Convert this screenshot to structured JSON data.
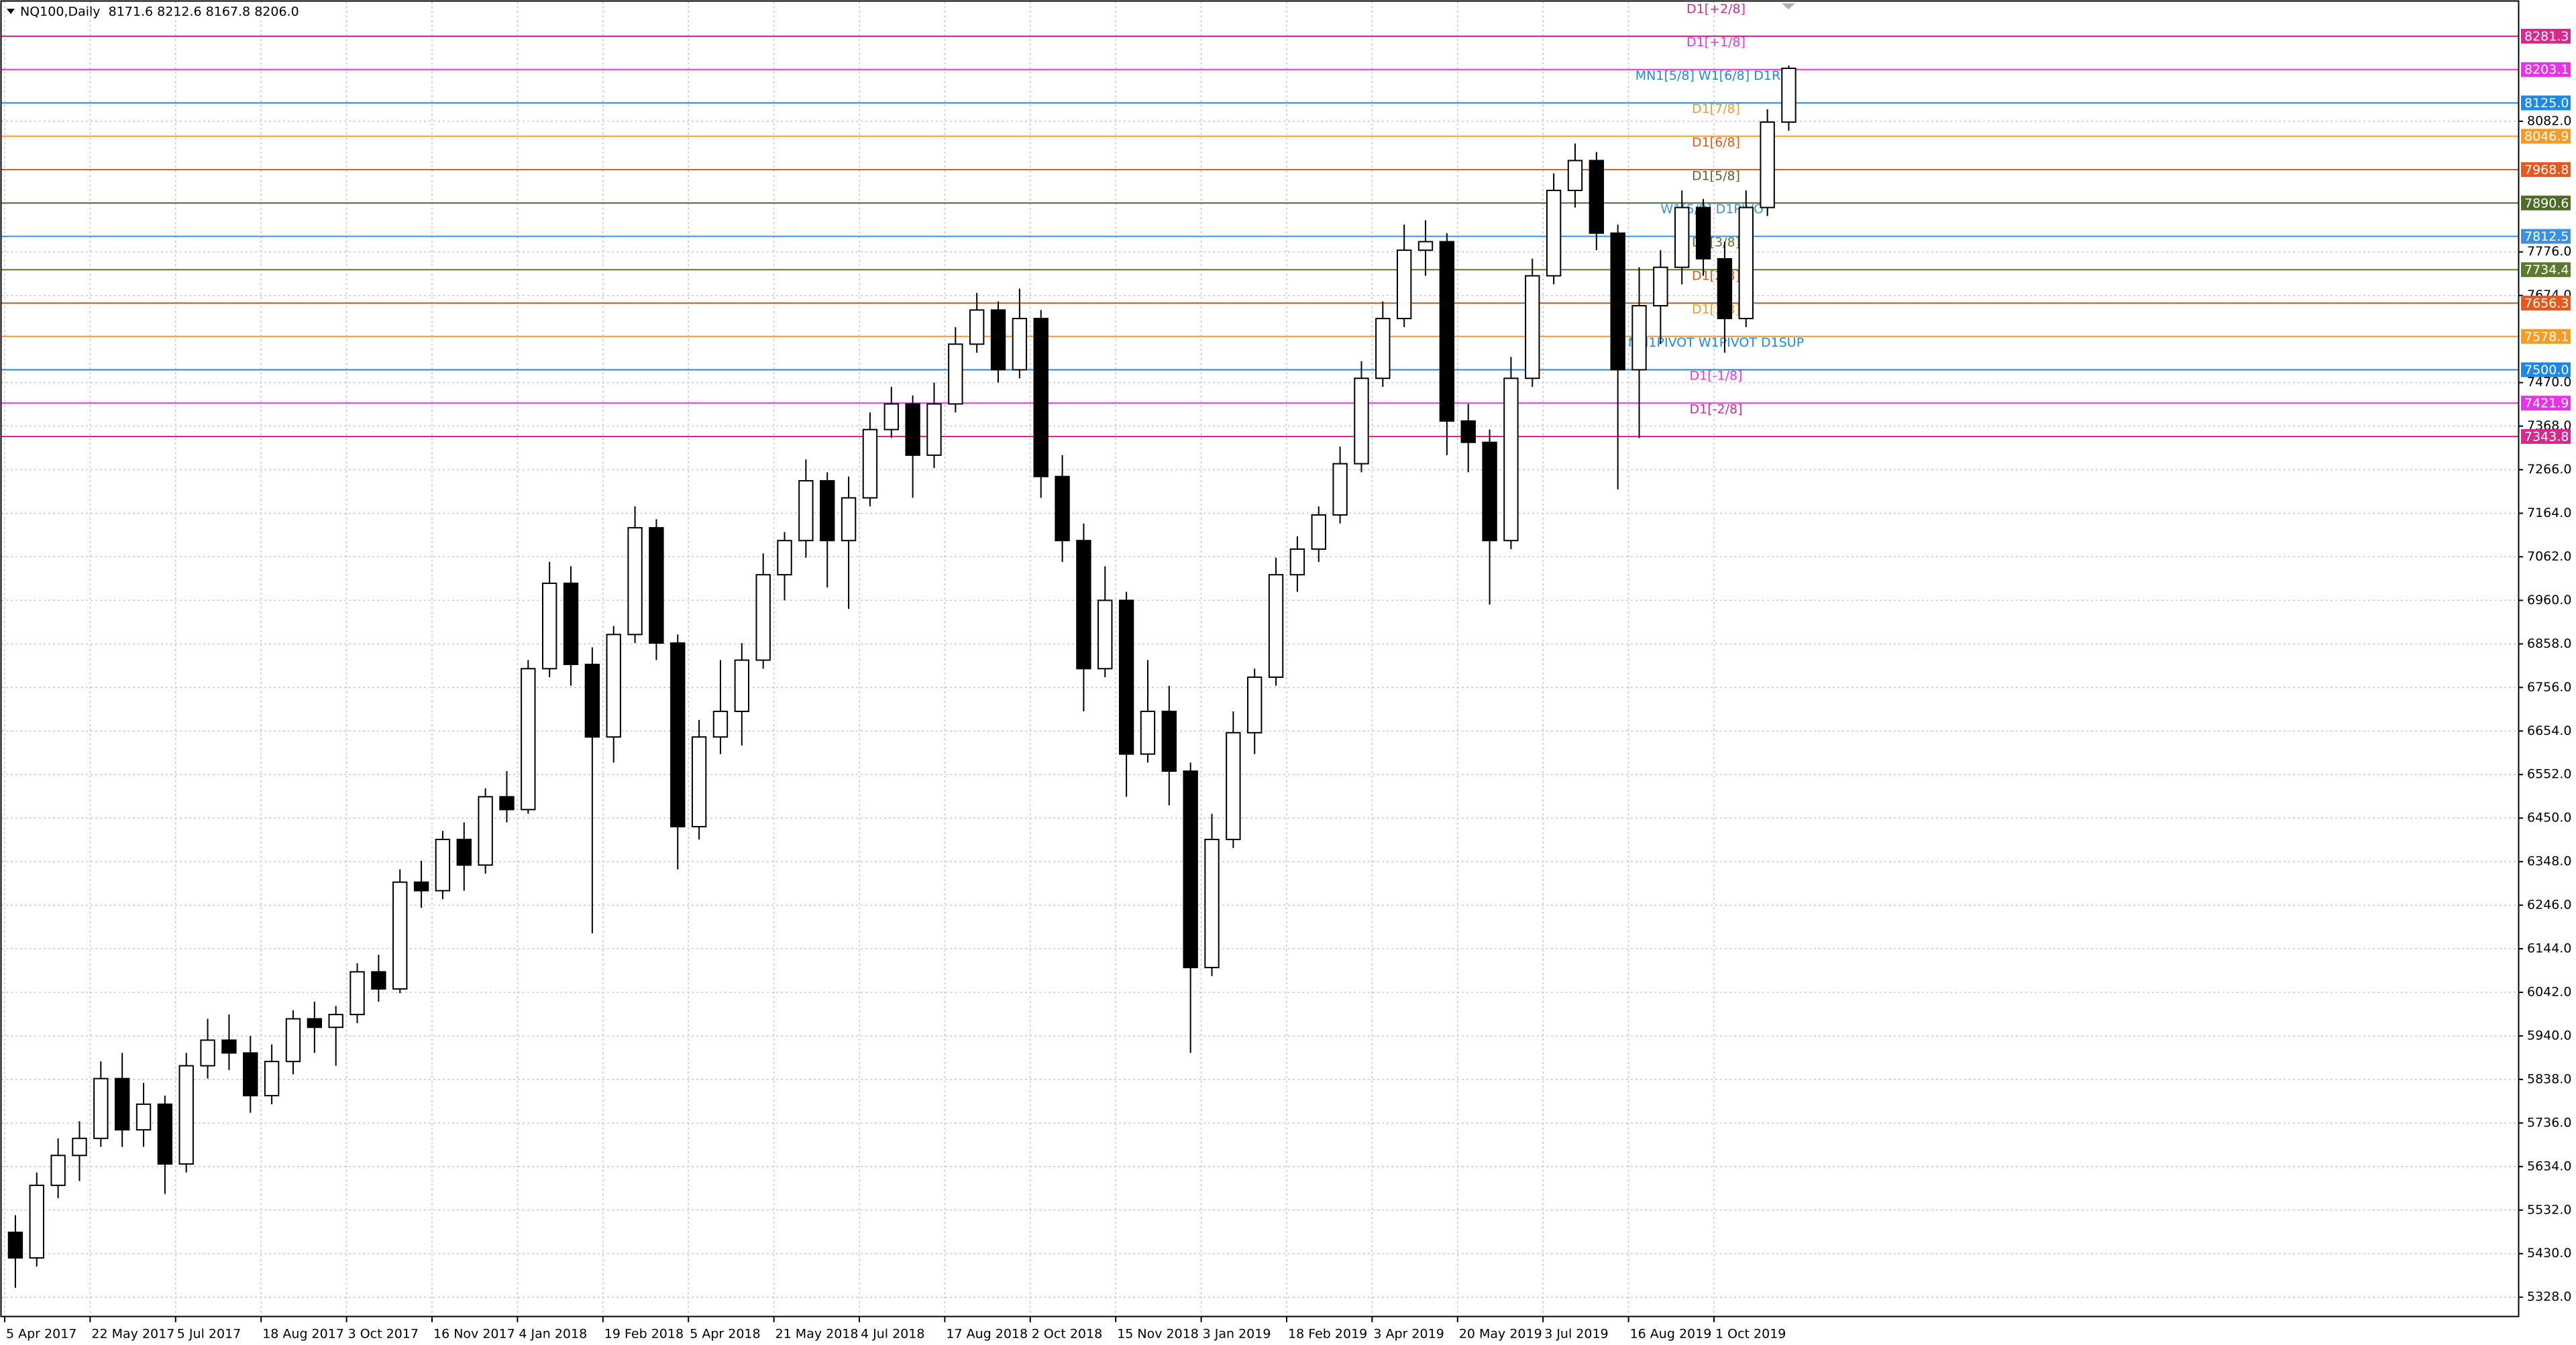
{
  "chart_data": {
    "type": "candlestick",
    "title": "NQ100,Daily  8171.6 8212.6 8167.8 8206.0",
    "categories": [
      "5 Apr 2017",
      null,
      null,
      null,
      "22 May 2017",
      null,
      null,
      null,
      "5 Jul 2017",
      null,
      null,
      null,
      "18 Aug 2017",
      null,
      null,
      null,
      "3 Oct 2017",
      null,
      null,
      null,
      "16 Nov 2017",
      null,
      null,
      null,
      "4 Jan 2018",
      null,
      null,
      null,
      "19 Feb 2018",
      null,
      null,
      null,
      "5 Apr 2018",
      null,
      null,
      null,
      "21 May 2018",
      null,
      null,
      null,
      "4 Jul 2018",
      null,
      null,
      null,
      "17 Aug 2018",
      null,
      null,
      null,
      "2 Oct 2018",
      null,
      null,
      null,
      "15 Nov 2018",
      null,
      null,
      null,
      "3 Jan 2019",
      null,
      null,
      null,
      "18 Feb 2019",
      null,
      null,
      null,
      "3 Apr 2019",
      null,
      null,
      null,
      "20 May 2019",
      null,
      null,
      null,
      "3 Jul 2019",
      null,
      null,
      null,
      "16 Aug 2019",
      null,
      null,
      null,
      "1 Oct 2019",
      null,
      null,
      null
    ],
    "open": [
      5480,
      5420,
      5590,
      5660,
      5700,
      5840,
      5720,
      5780,
      5640,
      5870,
      5930,
      5900,
      5800,
      5880,
      5980,
      5960,
      5990,
      6090,
      6050,
      6300,
      6280,
      6400,
      6340,
      6500,
      6470,
      6800,
      7000,
      6810,
      6640,
      6880,
      7130,
      6860,
      6430,
      6640,
      6700,
      6820,
      7020,
      7100,
      7240,
      7100,
      7200,
      7360,
      7420,
      7300,
      7420,
      7560,
      7640,
      7500,
      7620,
      7250,
      7100,
      6800,
      6960,
      6600,
      6700,
      6560,
      6100,
      6400,
      6650,
      6780,
      7020,
      7080,
      7160,
      7280,
      7480,
      7620,
      7780,
      7800,
      7380,
      7330,
      7100,
      7480,
      7720,
      7920,
      7990,
      7820,
      7500,
      7650,
      7740,
      7880,
      7760,
      7620,
      7880,
      8080
    ],
    "high": [
      5520,
      5620,
      5700,
      5740,
      5880,
      5900,
      5830,
      5800,
      5900,
      5980,
      5990,
      5940,
      5920,
      6000,
      6020,
      6010,
      6110,
      6130,
      6330,
      6350,
      6420,
      6440,
      6520,
      6560,
      6820,
      7050,
      7040,
      6850,
      6900,
      7180,
      7150,
      6880,
      6680,
      6820,
      6860,
      7070,
      7120,
      7290,
      7260,
      7250,
      7400,
      7460,
      7440,
      7470,
      7600,
      7680,
      7660,
      7690,
      7640,
      7300,
      7140,
      7040,
      6980,
      6820,
      6760,
      6580,
      6460,
      6700,
      6800,
      7060,
      7110,
      7180,
      7320,
      7520,
      7660,
      7840,
      7850,
      7820,
      7420,
      7360,
      7530,
      7760,
      7960,
      8030,
      8010,
      7840,
      7740,
      7780,
      7920,
      7900,
      7800,
      7920,
      8110,
      8212.6
    ],
    "low": [
      5350,
      5400,
      5560,
      5600,
      5680,
      5680,
      5680,
      5570,
      5620,
      5840,
      5860,
      5760,
      5780,
      5850,
      5900,
      5870,
      5970,
      6020,
      6040,
      6240,
      6260,
      6280,
      6320,
      6440,
      6460,
      6780,
      6760,
      6180,
      6580,
      6860,
      6820,
      6330,
      6400,
      6600,
      6620,
      6800,
      6960,
      7060,
      6990,
      6940,
      7180,
      7340,
      7200,
      7270,
      7400,
      7540,
      7470,
      7480,
      7200,
      7050,
      6700,
      6780,
      6500,
      6580,
      6480,
      5900,
      6080,
      6380,
      6600,
      6760,
      6980,
      7050,
      7140,
      7260,
      7460,
      7600,
      7720,
      7300,
      7260,
      6950,
      7080,
      7460,
      7700,
      7880,
      7780,
      7220,
      7340,
      7560,
      7700,
      7720,
      7540,
      7600,
      7860,
      8060
    ],
    "close": [
      5420,
      5590,
      5660,
      5700,
      5840,
      5720,
      5780,
      5640,
      5870,
      5930,
      5900,
      5800,
      5880,
      5980,
      5960,
      5990,
      6090,
      6050,
      6300,
      6280,
      6400,
      6340,
      6500,
      6470,
      6800,
      7000,
      6810,
      6640,
      6880,
      7130,
      6860,
      6430,
      6640,
      6700,
      6820,
      7020,
      7100,
      7240,
      7100,
      7200,
      7360,
      7420,
      7300,
      7420,
      7560,
      7640,
      7500,
      7620,
      7250,
      7100,
      6800,
      6960,
      6600,
      6700,
      6560,
      6100,
      6400,
      6650,
      6780,
      7020,
      7080,
      7160,
      7280,
      7480,
      7620,
      7780,
      7800,
      7380,
      7330,
      7100,
      7480,
      7720,
      7920,
      7990,
      7820,
      7500,
      7650,
      7740,
      7880,
      7760,
      7620,
      7880,
      8080,
      8206
    ],
    "up_color": "#ffffff",
    "down_color": "#000000",
    "ylim": [
      5282,
      8366
    ],
    "yticks": [
      {
        "value": 5328,
        "label": "5328.0"
      },
      {
        "value": 5430,
        "label": "5430.0"
      },
      {
        "value": 5532,
        "label": "5532.0"
      },
      {
        "value": 5634,
        "label": "5634.0"
      },
      {
        "value": 5736,
        "label": "5736.0"
      },
      {
        "value": 5838,
        "label": "5838.0"
      },
      {
        "value": 5940,
        "label": "5940.0"
      },
      {
        "value": 6042,
        "label": "6042.0"
      },
      {
        "value": 6144,
        "label": "6144.0"
      },
      {
        "value": 6246,
        "label": "6246.0"
      },
      {
        "value": 6348,
        "label": "6348.0"
      },
      {
        "value": 6450,
        "label": "6450.0"
      },
      {
        "value": 6552,
        "label": "6552.0"
      },
      {
        "value": 6654,
        "label": "6654.0"
      },
      {
        "value": 6756,
        "label": "6756.0"
      },
      {
        "value": 6858,
        "label": "6858.0"
      },
      {
        "value": 6960,
        "label": "6960.0"
      },
      {
        "value": 7062,
        "label": "7062.0"
      },
      {
        "value": 7164,
        "label": "7164.0"
      },
      {
        "value": 7266,
        "label": "7266.0"
      },
      {
        "value": 7368,
        "label": "7368.0"
      },
      {
        "value": 7470,
        "label": "7470.0"
      },
      {
        "value": 7674,
        "label": "7674.0"
      },
      {
        "value": 7776,
        "label": "7776.0"
      },
      {
        "value": 8082,
        "label": "8082.0"
      }
    ],
    "grid": true,
    "levels": {
      "names": [
        "D1[+2/8]",
        "D1[+1/8]",
        "MN1[5/8] W1[6/8] D1RES",
        "D1[7/8]",
        "D1[6/8]",
        "D1[5/8]",
        "W1[5/8] D1PIVOT",
        "D1[3/8]",
        "D1[2/8]",
        "D1[1/8]",
        "MN1PIVOT W1PIVOT D1SUP",
        "D1[-1/8]",
        "D1[-2/8]"
      ],
      "values": [
        8281.3,
        8203.1,
        8125.0,
        8046.9,
        7968.8,
        7890.6,
        7812.5,
        7734.4,
        7656.3,
        7578.1,
        7500.0,
        7421.9,
        7343.8
      ],
      "value_labels": [
        "8281.3",
        "8203.1",
        "8125.0",
        "8046.9",
        "7968.8",
        "7890.6",
        "7812.5",
        "7734.4",
        "7656.3",
        "7578.1",
        "7500.0",
        "7421.9",
        "7343.8"
      ],
      "colors": [
        "#d6288f",
        "#e633e6",
        "#1e88e5",
        "#f39c27",
        "#e8571c",
        "#4f6b2a",
        "#3d8fe0",
        "#5c7a2e",
        "#e8571c",
        "#f39c27",
        "#1e88e5",
        "#e633e6",
        "#d6288f"
      ]
    }
  }
}
